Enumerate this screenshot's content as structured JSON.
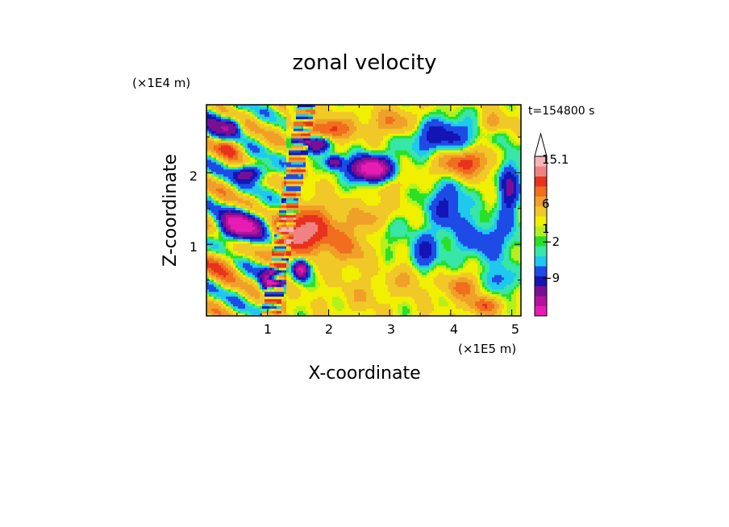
{
  "chart_data": {
    "type": "heatmap",
    "title": "zonal velocity",
    "xlabel": "X-coordinate",
    "ylabel": "Z-coordinate",
    "x_unit": "(×1E5 m)",
    "y_unit": "(×1E4 m)",
    "time_label": "t=154800 s",
    "x_ticks": [
      "1",
      "2",
      "3",
      "4",
      "5"
    ],
    "y_ticks": [
      "1",
      "2"
    ],
    "xlim": [
      0,
      5.15
    ],
    "ylim": [
      0,
      2.95
    ],
    "colorbar": {
      "labels": [
        {
          "text": "15.1",
          "value": 15.1
        },
        {
          "text": "6",
          "value": 6
        },
        {
          "text": "1",
          "value": 1
        },
        {
          "text": "−2",
          "value": -2
        },
        {
          "text": "−9",
          "value": -9
        }
      ],
      "levels": [
        {
          "value": -15,
          "color": "#e81cb4"
        },
        {
          "value": -12,
          "color": "#b4149c"
        },
        {
          "value": -9,
          "color": "#7a0f94"
        },
        {
          "value": -6,
          "color": "#1414b4"
        },
        {
          "value": -4,
          "color": "#1e4be6"
        },
        {
          "value": -2,
          "color": "#1ec8f0"
        },
        {
          "value": -1,
          "color": "#38e6a8"
        },
        {
          "value": 0,
          "color": "#28e028"
        },
        {
          "value": 0.5,
          "color": "#b4f01e"
        },
        {
          "value": 1,
          "color": "#f0f000"
        },
        {
          "value": 2,
          "color": "#f0c828"
        },
        {
          "value": 4,
          "color": "#f0a028"
        },
        {
          "value": 6,
          "color": "#f06e1e"
        },
        {
          "value": 8,
          "color": "#e8321e"
        },
        {
          "value": 11,
          "color": "#f08282"
        },
        {
          "value": 13,
          "color": "#f8b4b4"
        }
      ]
    }
  }
}
